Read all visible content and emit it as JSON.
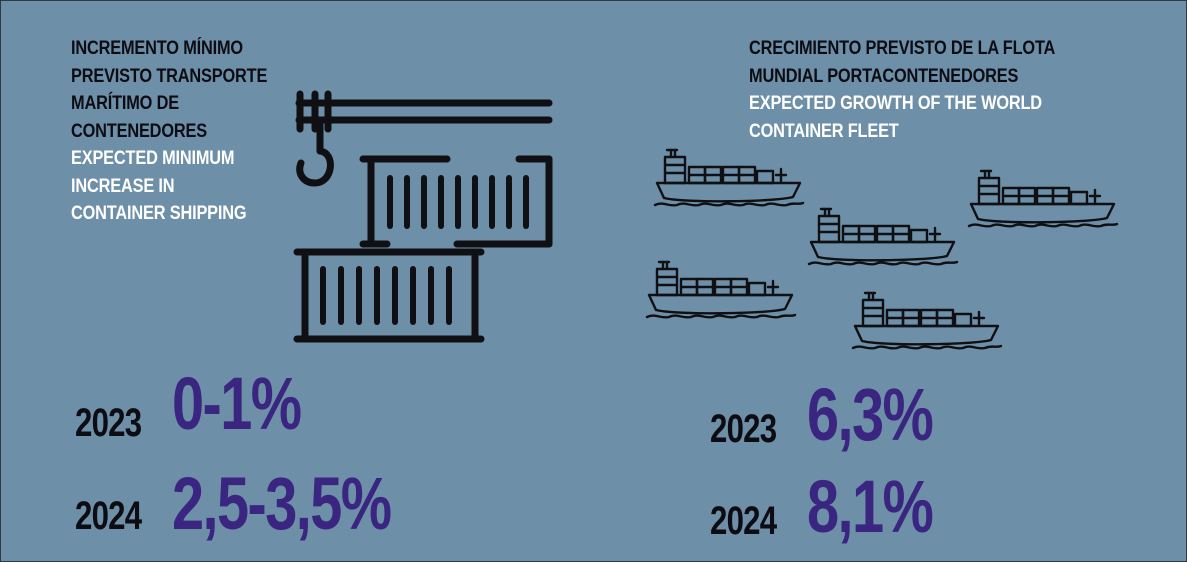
{
  "left_panel": {
    "heading_es": [
      "INCREMENTO MÍNIMO",
      "PREVISTO TRANSPORTE",
      "MARÍTIMO DE",
      "CONTENEDORES"
    ],
    "heading_en": [
      "EXPECTED MINIMUM",
      "INCREASE IN",
      "CONTAINER SHIPPING"
    ],
    "illustration_icon": "crane-containers-icon",
    "stats": [
      {
        "year": "2023",
        "value": "0-1%"
      },
      {
        "year": "2024",
        "value": "2,5-3,5%"
      }
    ]
  },
  "right_panel": {
    "heading_es": [
      "CRECIMIENTO PREVISTO DE LA FLOTA",
      "MUNDIAL PORTACONTENEDORES"
    ],
    "heading_en": [
      "EXPECTED GROWTH OF THE WORLD",
      "CONTAINER FLEET"
    ],
    "illustration_icon": "container-ship-icon",
    "stats": [
      {
        "year": "2023",
        "value": "6,3%"
      },
      {
        "year": "2024",
        "value": "8,1%"
      }
    ]
  },
  "colors": {
    "background": "#6d8fa8",
    "heading_dark": "#0c0c12",
    "heading_light": "#ffffff",
    "value_purple": "#3a2580"
  }
}
